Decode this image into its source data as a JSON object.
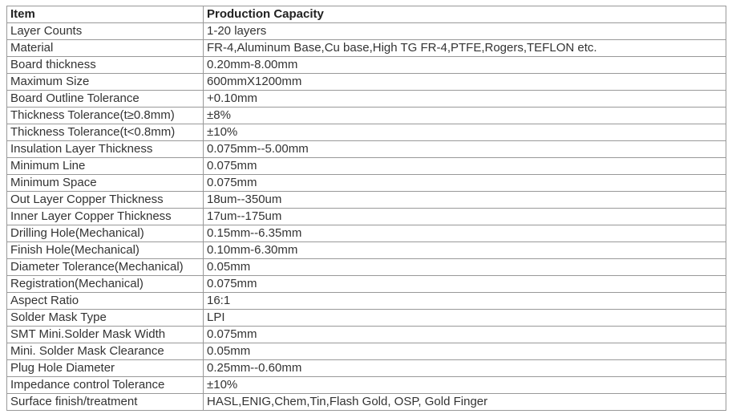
{
  "table": {
    "header": [
      "Item",
      "Production Capacity"
    ],
    "rows": [
      [
        "Layer Counts",
        "1-20 layers"
      ],
      [
        "Material",
        "FR-4,Aluminum Base,Cu base,High TG FR-4,PTFE,Rogers,TEFLON etc."
      ],
      [
        "Board thickness",
        "0.20mm-8.00mm"
      ],
      [
        "Maximum Size",
        "600mmX1200mm"
      ],
      [
        "Board Outline Tolerance",
        "+0.10mm"
      ],
      [
        "Thickness Tolerance(t≥0.8mm)",
        "±8%"
      ],
      [
        "Thickness Tolerance(t<0.8mm)",
        "±10%"
      ],
      [
        "Insulation Layer Thickness",
        "0.075mm--5.00mm"
      ],
      [
        "Minimum Line",
        "0.075mm"
      ],
      [
        "Minimum Space",
        "0.075mm"
      ],
      [
        "Out Layer Copper Thickness",
        "18um--350um"
      ],
      [
        "Inner Layer Copper Thickness",
        "17um--175um"
      ],
      [
        "Drilling Hole(Mechanical)",
        "0.15mm--6.35mm"
      ],
      [
        "Finish Hole(Mechanical)",
        "0.10mm-6.30mm"
      ],
      [
        "Diameter Tolerance(Mechanical)",
        "0.05mm"
      ],
      [
        "Registration(Mechanical)",
        "0.075mm"
      ],
      [
        "Aspect Ratio",
        "16:1"
      ],
      [
        "Solder Mask Type",
        "LPI"
      ],
      [
        "SMT Mini.Solder Mask Width",
        "0.075mm"
      ],
      [
        "Mini. Solder Mask Clearance",
        "0.05mm"
      ],
      [
        "Plug Hole Diameter",
        "0.25mm--0.60mm"
      ],
      [
        "Impedance control Tolerance",
        "±10%"
      ],
      [
        "Surface finish/treatment",
        "HASL,ENIG,Chem,Tin,Flash Gold, OSP, Gold Finger"
      ]
    ]
  }
}
